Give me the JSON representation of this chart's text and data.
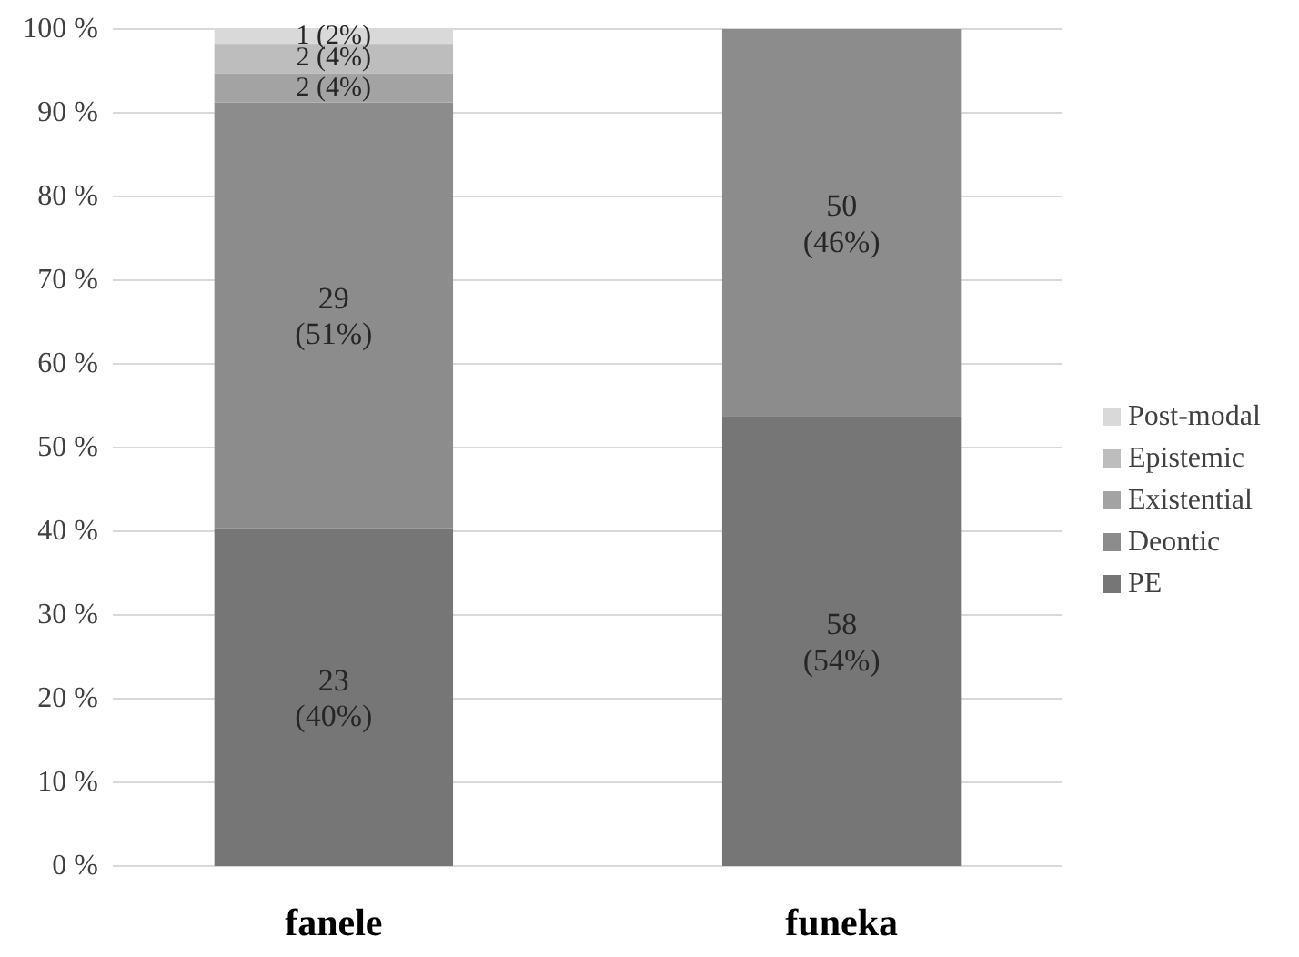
{
  "chart_data": {
    "type": "bar",
    "stacked": true,
    "categories": [
      "fanele",
      "funeka"
    ],
    "series": [
      {
        "name": "PE",
        "color": "#767676",
        "values": [
          40.35,
          53.7
        ],
        "value_labels": [
          "23\n(40%)",
          "58\n(54%)"
        ]
      },
      {
        "name": "Deontic",
        "color": "#8c8c8c",
        "values": [
          50.88,
          46.3
        ],
        "value_labels": [
          "29\n(51%)",
          "50\n(46%)"
        ]
      },
      {
        "name": "Existential",
        "color": "#a3a3a3",
        "values": [
          3.51,
          0
        ],
        "value_labels": [
          "2 (4%)",
          null
        ]
      },
      {
        "name": "Epistemic",
        "color": "#bdbdbd",
        "values": [
          3.51,
          0
        ],
        "value_labels": [
          "2 (4%)",
          null
        ]
      },
      {
        "name": "Post-modal",
        "color": "#d9d9d9",
        "values": [
          1.75,
          0
        ],
        "value_labels": [
          "1 (2%)",
          null
        ]
      }
    ],
    "ylim": [
      0,
      100
    ],
    "yticks": [
      {
        "value": 0,
        "label": "0 %"
      },
      {
        "value": 10,
        "label": "10 %"
      },
      {
        "value": 20,
        "label": "20 %"
      },
      {
        "value": 30,
        "label": "30 %"
      },
      {
        "value": 40,
        "label": "40 %"
      },
      {
        "value": 50,
        "label": "50 %"
      },
      {
        "value": 60,
        "label": "60 %"
      },
      {
        "value": 70,
        "label": "70 %"
      },
      {
        "value": 80,
        "label": "80 %"
      },
      {
        "value": 90,
        "label": "90 %"
      },
      {
        "value": 100,
        "label": "100 %"
      }
    ],
    "grid": "y",
    "legend": "right"
  }
}
